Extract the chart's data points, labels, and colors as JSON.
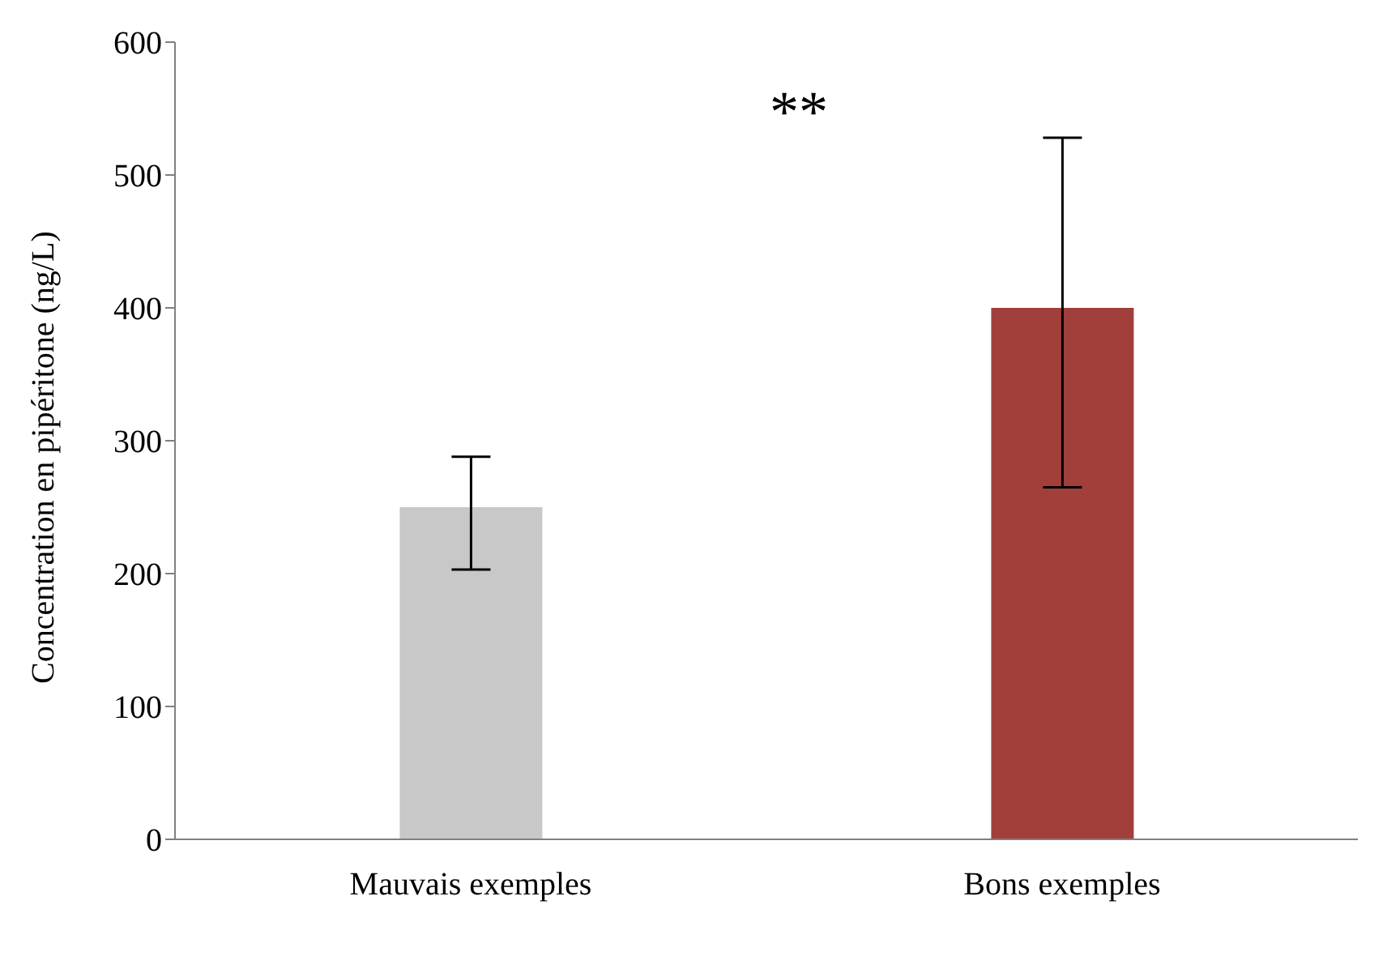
{
  "chart_data": {
    "type": "bar",
    "ylabel": "Concentration en pipéritone (ng/L)",
    "categories": [
      "Mauvais exemples",
      "Bons exemples"
    ],
    "values": [
      250,
      400
    ],
    "colors": [
      "#c8c8c8",
      "#a13f3b"
    ],
    "errors": [
      [
        203,
        288
      ],
      [
        265,
        528
      ]
    ],
    "ylim": [
      0,
      600
    ],
    "yticks": [
      0,
      100,
      200,
      300,
      400,
      500,
      600
    ],
    "grid": false,
    "annotations": [
      "**"
    ]
  }
}
